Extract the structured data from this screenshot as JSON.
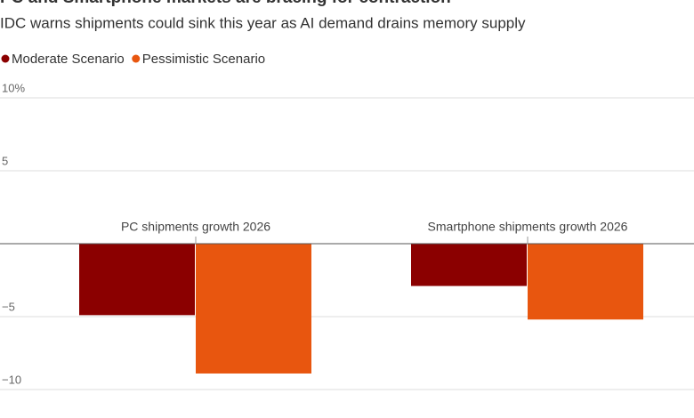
{
  "chart_data": {
    "type": "bar",
    "title": "PC and Smartphone markets are bracing for contraction",
    "subtitle": "IDC warns shipments could sink this year as AI demand drains memory supply",
    "categories": [
      "PC shipments growth 2026",
      "Smartphone shipments growth 2026"
    ],
    "series": [
      {
        "name": "Moderate Scenario",
        "color": "#8b0000",
        "values": [
          -4.9,
          -2.9
        ]
      },
      {
        "name": "Pessimistic Scenario",
        "color": "#e8560f",
        "values": [
          -8.9,
          -5.2
        ]
      }
    ],
    "ylim": [
      -10,
      10
    ],
    "yticks": [
      {
        "value": 10,
        "label": "10%"
      },
      5,
      {
        "value": -5,
        "label": "−5"
      },
      {
        "value": -10,
        "label": "−10"
      }
    ],
    "grid": true
  }
}
